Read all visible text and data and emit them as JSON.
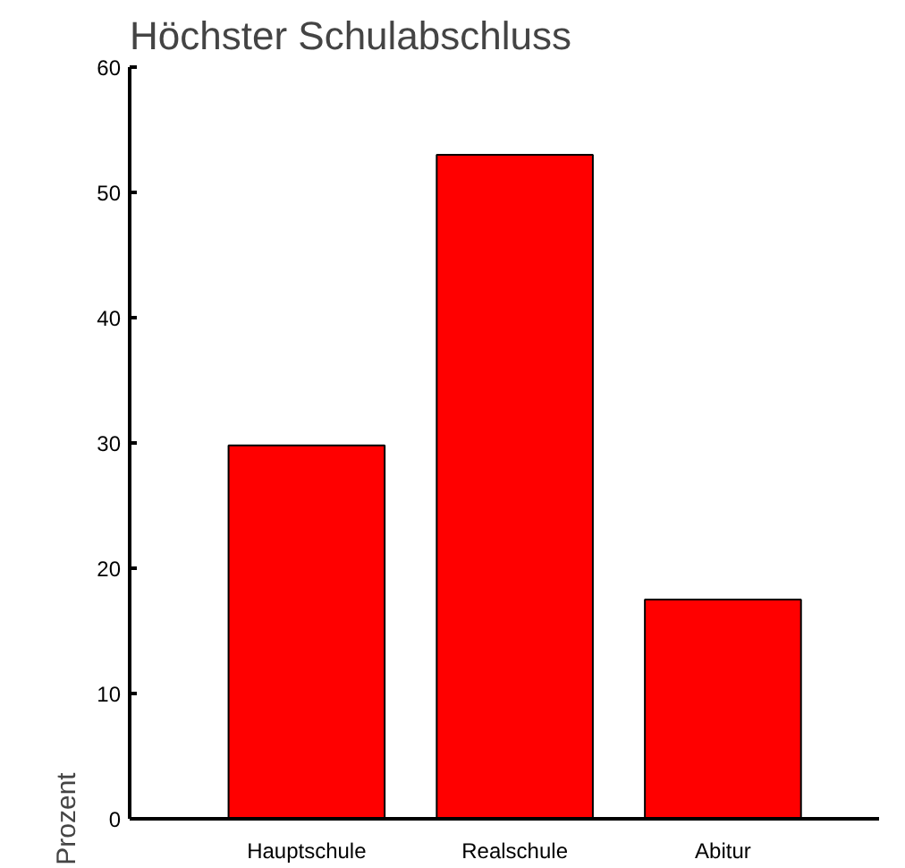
{
  "chart_data": {
    "type": "bar",
    "title": "Höchster Schulabschluss",
    "ylabel": "Prozent",
    "categories": [
      "Hauptschule",
      "Realschule",
      "Abitur"
    ],
    "values": [
      29.8,
      53.0,
      17.5
    ],
    "color": "#ff0000",
    "ylim": [
      0,
      60
    ],
    "yticks": [
      0,
      10,
      20,
      30,
      40,
      50,
      60
    ],
    "grid": false
  }
}
